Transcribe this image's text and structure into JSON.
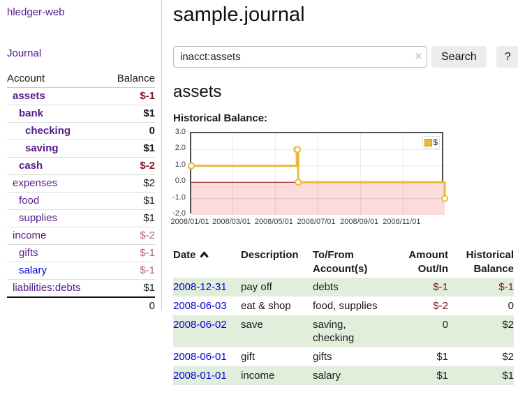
{
  "colors": {
    "purple": "#551a8b",
    "blue": "#0000dd",
    "maroon": "#801423",
    "rose": "#b4686d",
    "black": "#1a1a1a",
    "gold": "#e8ba38",
    "stripe_green": "#e1eedb",
    "negative_fill": "#fbdbdb",
    "zero_line": "#8f0000"
  },
  "sidebar": {
    "brand": "hledger-web",
    "nav_journal": "Journal",
    "accounts_header": {
      "account": "Account",
      "balance": "Balance"
    },
    "accounts": [
      {
        "name": "assets",
        "balance": "$-1",
        "depth": 1,
        "bold": true,
        "name_color": "purple",
        "bal_color": "maroon"
      },
      {
        "name": "bank",
        "balance": "$1",
        "depth": 2,
        "bold": true,
        "name_color": "purple",
        "bal_color": "black"
      },
      {
        "name": "checking",
        "balance": "0",
        "depth": 3,
        "bold": true,
        "name_color": "purple",
        "bal_color": "black"
      },
      {
        "name": "saving",
        "balance": "$1",
        "depth": 3,
        "bold": true,
        "name_color": "purple",
        "bal_color": "black"
      },
      {
        "name": "cash",
        "balance": "$-2",
        "depth": 2,
        "bold": true,
        "name_color": "purple",
        "bal_color": "maroon"
      },
      {
        "name": "expenses",
        "balance": "$2",
        "depth": 1,
        "bold": false,
        "name_color": "purple",
        "bal_color": "black"
      },
      {
        "name": "food",
        "balance": "$1",
        "depth": 2,
        "bold": false,
        "name_color": "purple",
        "bal_color": "black"
      },
      {
        "name": "supplies",
        "balance": "$1",
        "depth": 2,
        "bold": false,
        "name_color": "purple",
        "bal_color": "black"
      },
      {
        "name": "income",
        "balance": "$-2",
        "depth": 1,
        "bold": false,
        "name_color": "purple",
        "bal_color": "rose"
      },
      {
        "name": "gifts",
        "balance": "$-1",
        "depth": 2,
        "bold": false,
        "name_color": "purple",
        "bal_color": "rose"
      },
      {
        "name": "salary",
        "balance": "$-1",
        "depth": 2,
        "bold": false,
        "name_color": "blue",
        "bal_color": "rose"
      },
      {
        "name": "liabilities:debts",
        "balance": "$1",
        "depth": 1,
        "bold": false,
        "name_color": "purple",
        "bal_color": "black"
      }
    ],
    "total": "0"
  },
  "header": {
    "title": "sample.journal"
  },
  "search": {
    "value": "inacct:assets",
    "clear_glyph": "×",
    "button_label": "Search",
    "help_label": "?"
  },
  "account_page": {
    "heading": "assets",
    "chart_title": "Historical Balance:"
  },
  "chart_data": {
    "type": "line",
    "title": "Historical Balance:",
    "step": true,
    "x_range": [
      "2008-01-01",
      "2008-12-31"
    ],
    "ylim": [
      -2,
      3
    ],
    "y_ticks": [
      "3.0",
      "2.0",
      "1.0",
      "0.0",
      "-1.0",
      "-2.0"
    ],
    "x_ticks": [
      {
        "label": "2008/01/01",
        "date": "2008-01-01"
      },
      {
        "label": "2008/03/01",
        "date": "2008-03-01"
      },
      {
        "label": "2008/05/01",
        "date": "2008-05-01"
      },
      {
        "label": "2008/07/01",
        "date": "2008-07-01"
      },
      {
        "label": "2008/09/01",
        "date": "2008-09-01"
      },
      {
        "label": "2008/11/01",
        "date": "2008-11-01"
      }
    ],
    "series": [
      {
        "name": "$",
        "color": "#e8ba38",
        "points": [
          [
            "2008-01-01",
            1
          ],
          [
            "2008-06-01",
            2
          ],
          [
            "2008-06-02",
            2
          ],
          [
            "2008-06-03",
            0
          ],
          [
            "2008-12-31",
            -1
          ]
        ]
      }
    ],
    "grid": true,
    "legend_position": "top-right",
    "negative_region_below_zero": true
  },
  "register": {
    "headers": [
      {
        "label": "Date",
        "align": "left",
        "sortable_asc": true
      },
      {
        "label": "Description",
        "align": "left"
      },
      {
        "label": "To/From Account(s)",
        "align": "left"
      },
      {
        "label": "Amount Out/In",
        "align": "right"
      },
      {
        "label": "Historical Balance",
        "align": "right"
      }
    ],
    "rows": [
      {
        "date": "2008-12-31",
        "description": "pay off",
        "accounts": "debts",
        "amount": "$-1",
        "amount_neg": true,
        "balance": "$-1",
        "balance_neg": true,
        "stripe": true
      },
      {
        "date": "2008-06-03",
        "description": "eat & shop",
        "accounts": "food, supplies",
        "amount": "$-2",
        "amount_neg": true,
        "balance": "0",
        "balance_neg": false,
        "stripe": false
      },
      {
        "date": "2008-06-02",
        "description": "save",
        "accounts": "saving, checking",
        "amount": "0",
        "amount_neg": false,
        "balance": "$2",
        "balance_neg": false,
        "stripe": true
      },
      {
        "date": "2008-06-01",
        "description": "gift",
        "accounts": "gifts",
        "amount": "$1",
        "amount_neg": false,
        "balance": "$2",
        "balance_neg": false,
        "stripe": false
      },
      {
        "date": "2008-01-01",
        "description": "income",
        "accounts": "salary",
        "amount": "$1",
        "amount_neg": false,
        "balance": "$1",
        "balance_neg": false,
        "stripe": true
      }
    ]
  }
}
